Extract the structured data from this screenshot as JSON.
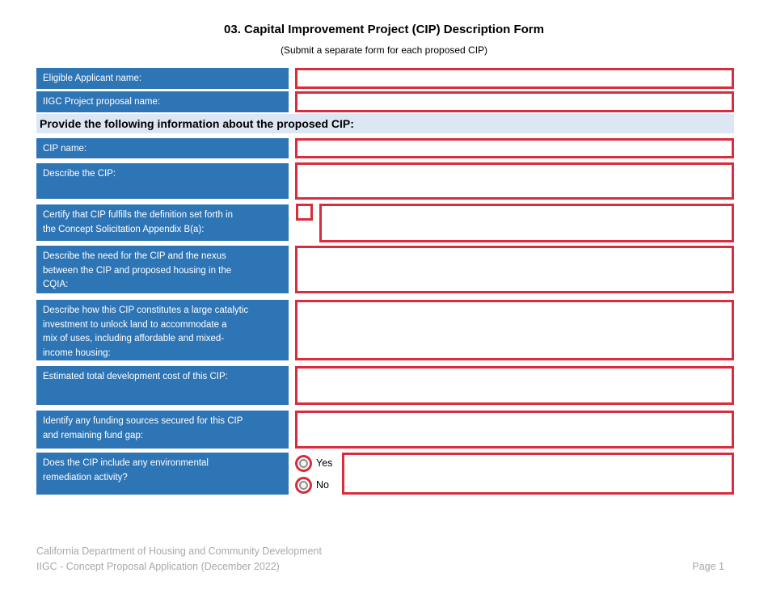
{
  "document": {
    "title": "03. Capital Improvement Project (CIP) Description Form",
    "subtitle": "(Submit a separate form for each proposed CIP)",
    "section_header": "Provide the following information about the proposed CIP:"
  },
  "form": {
    "rows": [
      {
        "label": "Eligible Applicant name:",
        "value": ""
      },
      {
        "label": "IIGC Project proposal name:",
        "value": ""
      },
      {
        "label": "CIP name:",
        "value": ""
      },
      {
        "label": "Describe the CIP:",
        "value": ""
      },
      {
        "label": "Certify that CIP fulfills the definition set forth in\nthe Concept Solicitation Appendix B(a):",
        "checkbox_checked": false,
        "value": ""
      },
      {
        "label": "Describe the need for the CIP and the nexus\nbetween the CIP and proposed housing in the\nCQIA:",
        "value": ""
      },
      {
        "label": "Describe how this CIP constitutes a large catalytic\ninvestment to unlock land to accommodate a\nmix of uses, including affordable and mixed-\nincome housing:",
        "value": ""
      },
      {
        "label": "Estimated total development cost of this CIP:",
        "value": ""
      },
      {
        "label": "Identify any funding sources secured for this CIP\nand remaining fund gap:",
        "value": ""
      },
      {
        "label": "Does the CIP include any environmental\nremediation activity?",
        "value": "",
        "options": [
          {
            "label": "Yes",
            "selected": false
          },
          {
            "label": "No",
            "selected": false
          }
        ]
      }
    ]
  },
  "footer": {
    "org_line": "California Department of Housing and Community Development",
    "app_line": "IIGC - Concept Proposal Application (December 2022)",
    "page_label": "Page 1"
  },
  "colors": {
    "label_background": "#2E75B6",
    "section_header_background": "#DCE7F3",
    "field_border": "#D92C3C",
    "footer_text": "#A9A9A9"
  }
}
